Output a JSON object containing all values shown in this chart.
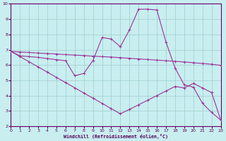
{
  "background_color": "#c8eef0",
  "line_color_1": "#993399",
  "line_color_2": "#993399",
  "line_color_3": "#993399",
  "grid_color": "#a0cccc",
  "xlabel": "Windchill (Refroidissement éolien,°C)",
  "xlim": [
    0,
    23
  ],
  "ylim": [
    2,
    10
  ],
  "xticks": [
    0,
    1,
    2,
    3,
    4,
    5,
    6,
    7,
    8,
    9,
    10,
    11,
    12,
    13,
    14,
    15,
    16,
    17,
    18,
    19,
    20,
    21,
    22,
    23
  ],
  "yticks": [
    2,
    3,
    4,
    5,
    6,
    7,
    8,
    9,
    10
  ],
  "line1_x": [
    0,
    1,
    2,
    3,
    4,
    5,
    6,
    7,
    8,
    9,
    10,
    11,
    12,
    13,
    14,
    15,
    16,
    17,
    18,
    19,
    20,
    21,
    22,
    23
  ],
  "line1_y": [
    6.9,
    6.85,
    6.82,
    6.78,
    6.75,
    6.72,
    6.68,
    6.65,
    6.62,
    6.58,
    6.55,
    6.52,
    6.48,
    6.44,
    6.4,
    6.36,
    6.32,
    6.28,
    6.24,
    6.2,
    6.15,
    6.1,
    6.05,
    5.98
  ],
  "line2_x": [
    0,
    1,
    2,
    3,
    4,
    5,
    6,
    7,
    8,
    9,
    10,
    11,
    12,
    13,
    14,
    15,
    16,
    17,
    18,
    19,
    20,
    21,
    22,
    23
  ],
  "line2_y": [
    6.9,
    6.6,
    6.55,
    6.5,
    6.42,
    6.35,
    6.28,
    5.3,
    5.45,
    6.3,
    7.8,
    7.7,
    7.2,
    8.3,
    9.65,
    9.65,
    9.6,
    7.5,
    5.8,
    4.7,
    4.55,
    3.5,
    2.9,
    2.4
  ],
  "line3_x": [
    0,
    1,
    2,
    3,
    4,
    5,
    6,
    7,
    8,
    9,
    10,
    11,
    12,
    13,
    14,
    15,
    16,
    17,
    18,
    19,
    20,
    21,
    22,
    23
  ],
  "line3_y": [
    6.9,
    6.55,
    6.21,
    5.87,
    5.53,
    5.19,
    4.85,
    4.51,
    4.17,
    3.83,
    3.49,
    3.15,
    2.81,
    3.1,
    3.4,
    3.7,
    4.0,
    4.3,
    4.6,
    4.5,
    4.8,
    4.5,
    4.2,
    2.4
  ]
}
